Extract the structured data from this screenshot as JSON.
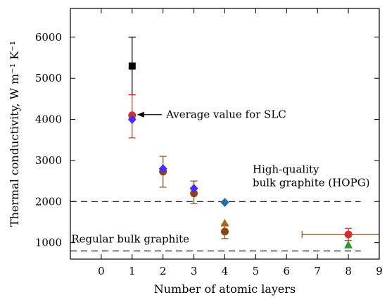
{
  "chart_data": {
    "type": "scatter",
    "xlabel": "Number of atomic layers",
    "ylabel": "Thermal conductivity, W m⁻¹ K⁻¹",
    "xlim": [
      -1,
      9
    ],
    "ylim": [
      600,
      6700
    ],
    "xticks": [
      "0",
      "1",
      "2",
      "3",
      "4",
      "5",
      "6",
      "7",
      "8",
      "9"
    ],
    "yticks": [
      "1000",
      "2000",
      "3000",
      "4000",
      "5000",
      "6000"
    ],
    "grid": false,
    "colors": {
      "black": "#000000",
      "red": "#d0312d",
      "brown": "#8b4513",
      "blue": "#4b2cf0",
      "olive": "#a86a1c",
      "green": "#2e9a2e",
      "teal": "#1e6fb0"
    },
    "series": [
      {
        "marker": "square",
        "color": "#000000",
        "points": [
          {
            "x": 1,
            "y": 5300,
            "yerr": [
              4600,
              6000
            ]
          }
        ]
      },
      {
        "marker": "circle",
        "color": "#d0312d",
        "points": [
          {
            "x": 1,
            "y": 4100,
            "yerr": [
              3550,
              4600
            ]
          },
          {
            "x": 8,
            "y": 1200,
            "yerr": [
              1050,
              1350
            ],
            "xerr": [
              6.5,
              9
            ]
          }
        ]
      },
      {
        "marker": "circle",
        "color": "#8b4513",
        "points": [
          {
            "x": 2,
            "y": 2730,
            "yerr": [
              2350,
              3100
            ]
          },
          {
            "x": 3,
            "y": 2200,
            "yerr": [
              1950,
              2500
            ]
          },
          {
            "x": 4,
            "y": 1270,
            "yerr": [
              1100,
              1450
            ]
          }
        ]
      },
      {
        "marker": "diamond",
        "color": "#4b2cf0",
        "points": [
          {
            "x": 1,
            "y": 4000
          },
          {
            "x": 2,
            "y": 2800
          },
          {
            "x": 3,
            "y": 2320
          }
        ]
      },
      {
        "marker": "diamond",
        "color": "#1e6fb0",
        "points": [
          {
            "x": 4,
            "y": 1980
          }
        ]
      },
      {
        "marker": "triangle",
        "color": "#a86a1c",
        "points": [
          {
            "x": 4,
            "y": 1480
          }
        ]
      },
      {
        "marker": "triangle",
        "color": "#2e9a2e",
        "points": [
          {
            "x": 8,
            "y": 950
          }
        ]
      }
    ],
    "reference_lines": [
      {
        "y": 2000,
        "style": "dashed",
        "label": "High-quality\nbulk graphite (HOPG)"
      },
      {
        "y": 800,
        "style": "dashed",
        "label": "Regular bulk graphite"
      }
    ],
    "annotations": [
      {
        "text": "Average value for SLC",
        "x": 1,
        "y": 4100,
        "arrow": true
      }
    ]
  }
}
